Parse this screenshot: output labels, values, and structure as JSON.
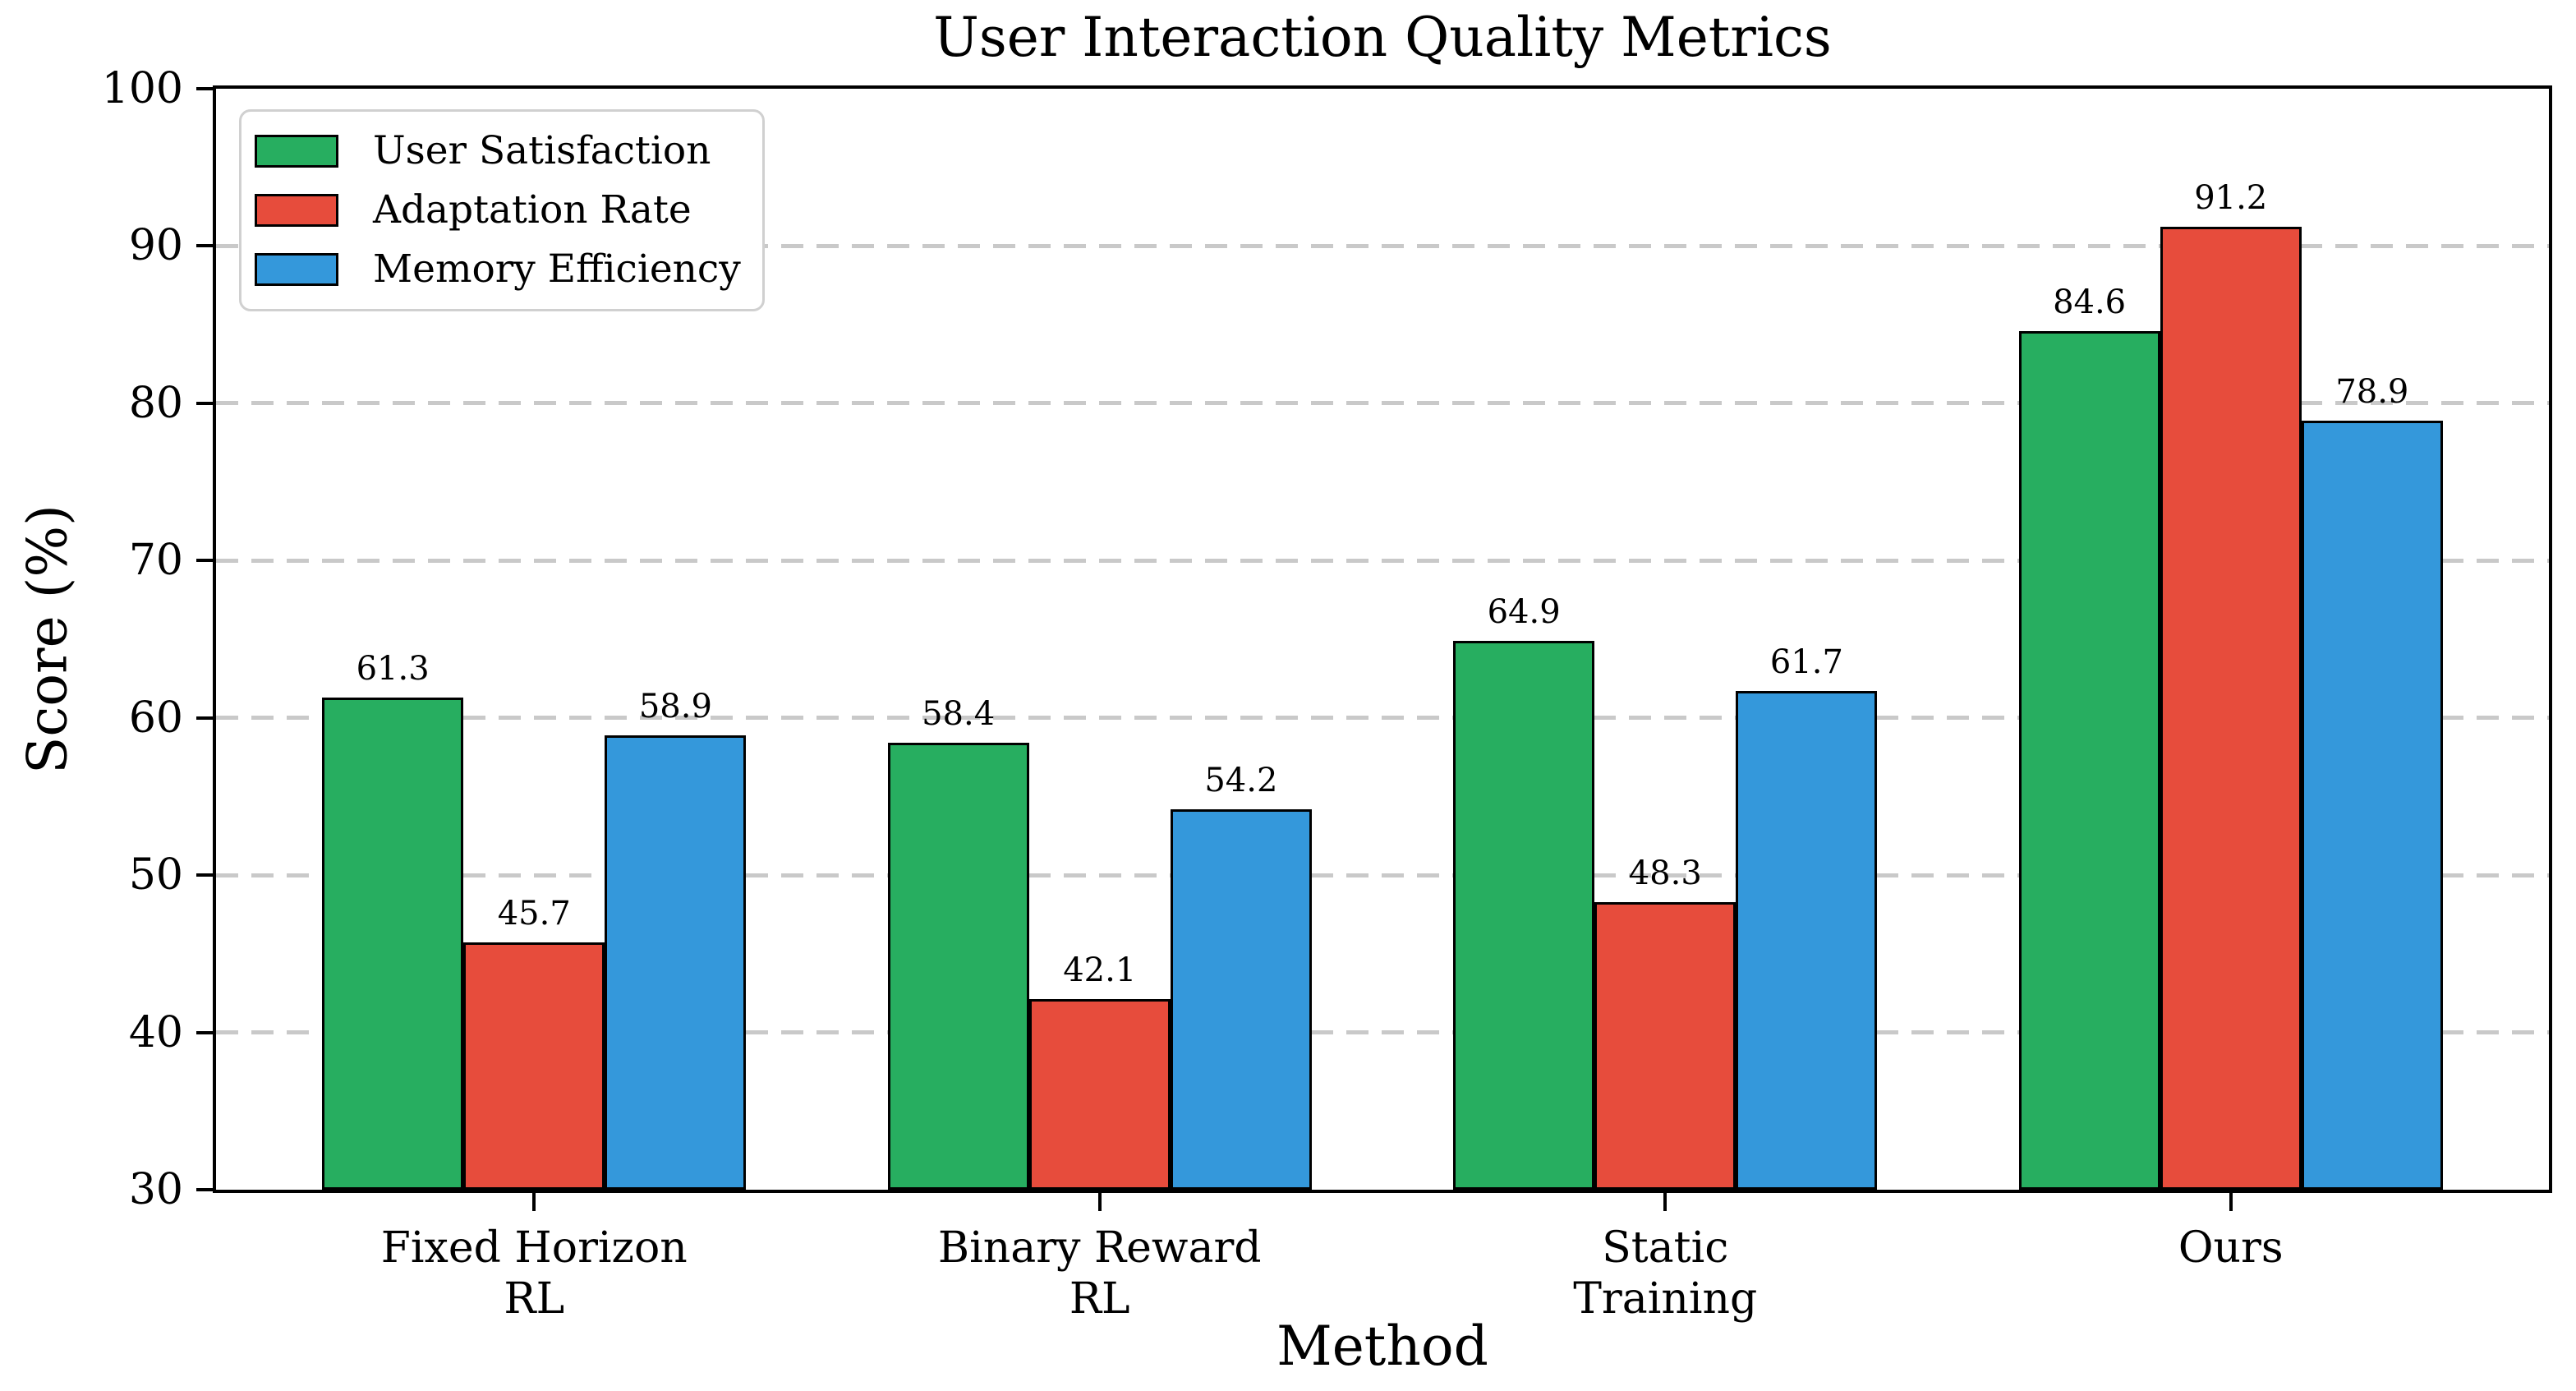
{
  "chart_data": {
    "type": "bar",
    "title": "User Interaction Quality Metrics",
    "xlabel": "Method",
    "ylabel": "Score (%)",
    "categories": [
      "Fixed Horizon\nRL",
      "Binary Reward\nRL",
      "Static\nTraining",
      "Ours"
    ],
    "series": [
      {
        "name": "User Satisfaction",
        "color": "#27ae60",
        "values": [
          61.3,
          58.4,
          64.9,
          84.6
        ]
      },
      {
        "name": "Adaptation Rate",
        "color": "#e74c3c",
        "values": [
          45.7,
          42.1,
          48.3,
          91.2
        ]
      },
      {
        "name": "Memory Efficiency",
        "color": "#3498db",
        "values": [
          58.9,
          54.2,
          61.7,
          78.9
        ]
      }
    ],
    "ylim": [
      30,
      100
    ],
    "yticks": [
      30,
      40,
      50,
      60,
      70,
      80,
      90,
      100
    ],
    "xlim": [
      -0.5625,
      3.5625
    ],
    "bar_width": 0.25,
    "grid": {
      "axis": "y",
      "style": "dashed",
      "color": "#c9c9c9"
    },
    "legend_position": "upper-left",
    "bar_edge_color": "#000000",
    "value_labels_shown": true
  }
}
